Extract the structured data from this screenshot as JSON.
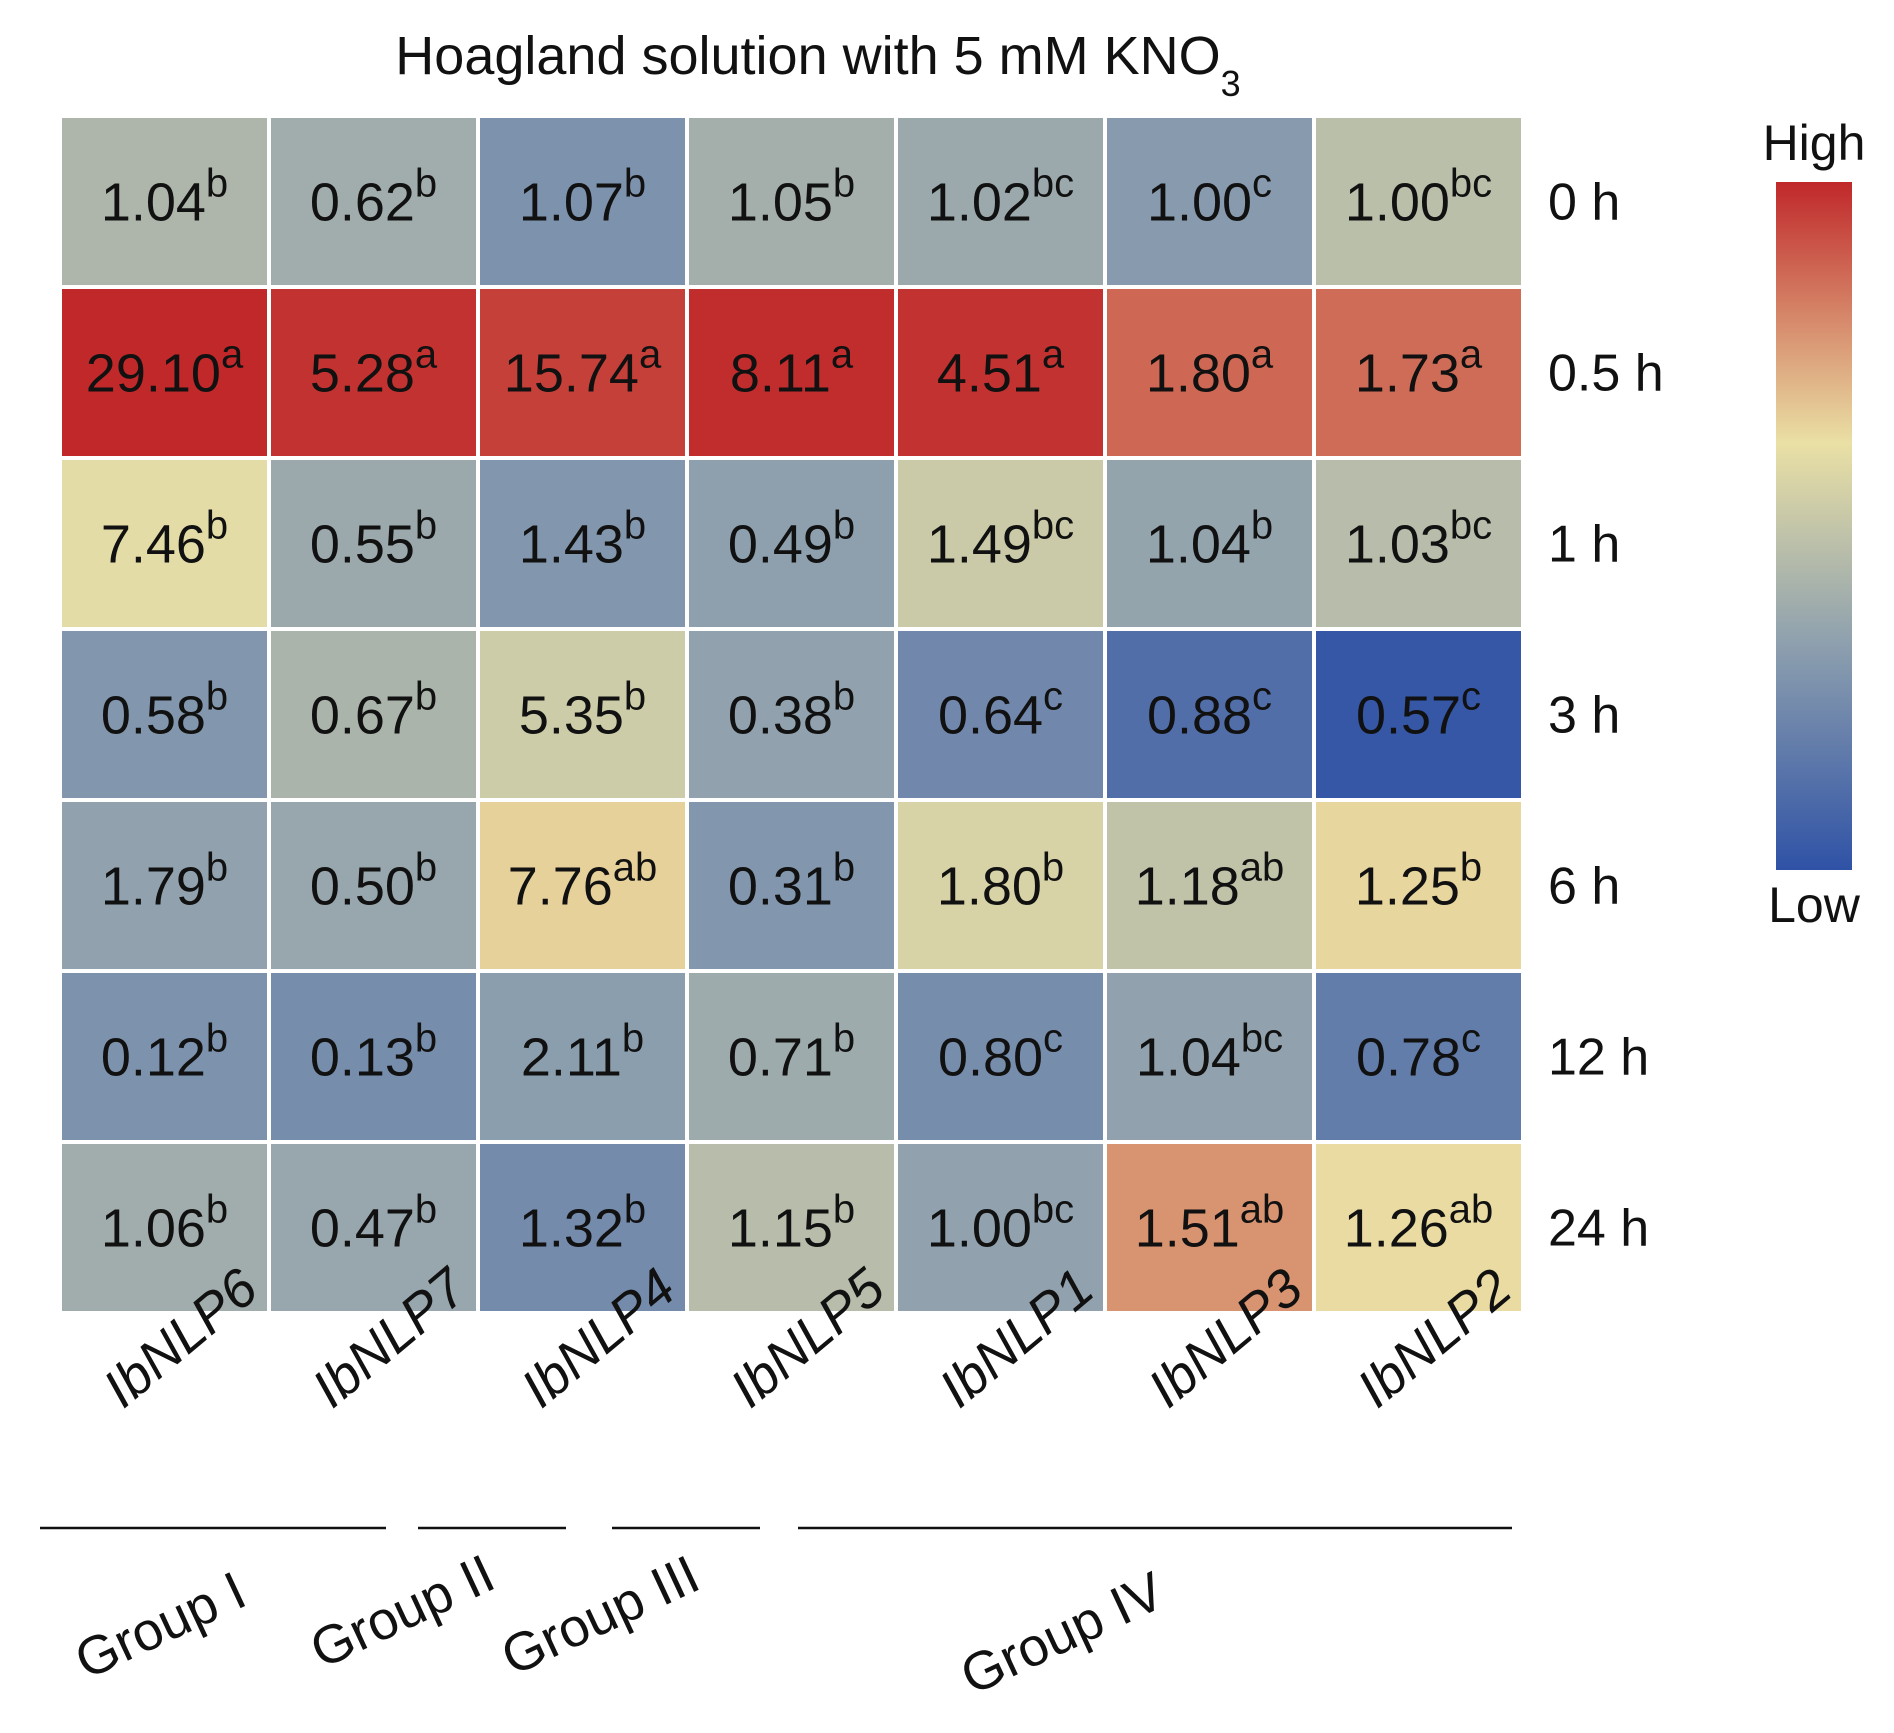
{
  "chart_data": {
    "type": "heatmap",
    "title": "Hoagland solution with 5 mM KNO",
    "title_subscript": "3",
    "columns": [
      "IbNLP6",
      "IbNLP7",
      "IbNLP4",
      "IbNLP5",
      "IbNLP1",
      "IbNLP3",
      "IbNLP2"
    ],
    "rows": [
      "0 h",
      "0.5 h",
      "1 h",
      "3 h",
      "6 h",
      "12 h",
      "24 h"
    ],
    "values": [
      [
        "1.04",
        "0.62",
        "1.07",
        "1.05",
        "1.02",
        "1.00",
        "1.00"
      ],
      [
        "29.10",
        "5.28",
        "15.74",
        "8.11",
        "4.51",
        "1.80",
        "1.73"
      ],
      [
        "7.46",
        "0.55",
        "1.43",
        "0.49",
        "1.49",
        "1.04",
        "1.03"
      ],
      [
        "0.58",
        "0.67",
        "5.35",
        "0.38",
        "0.64",
        "0.88",
        "0.57"
      ],
      [
        "1.79",
        "0.50",
        "7.76",
        "0.31",
        "1.80",
        "1.18",
        "1.25"
      ],
      [
        "0.12",
        "0.13",
        "2.11",
        "0.71",
        "0.80",
        "1.04",
        "0.78"
      ],
      [
        "1.06",
        "0.47",
        "1.32",
        "1.15",
        "1.00",
        "1.51",
        "1.26"
      ]
    ],
    "letters": [
      [
        "b",
        "b",
        "b",
        "b",
        "bc",
        "c",
        "bc"
      ],
      [
        "a",
        "a",
        "a",
        "a",
        "a",
        "a",
        "a"
      ],
      [
        "b",
        "b",
        "b",
        "b",
        "bc",
        "b",
        "bc"
      ],
      [
        "b",
        "b",
        "b",
        "b",
        "c",
        "c",
        "c"
      ],
      [
        "b",
        "b",
        "ab",
        "b",
        "b",
        "ab",
        "b"
      ],
      [
        "b",
        "b",
        "b",
        "b",
        "c",
        "bc",
        "c"
      ],
      [
        "b",
        "b",
        "b",
        "b",
        "bc",
        "ab",
        "ab"
      ]
    ],
    "color_scale": [
      [
        0.43,
        0.39,
        0.27,
        0.4,
        0.37,
        0.31,
        0.47
      ],
      [
        1.0,
        0.98,
        0.95,
        0.99,
        0.98,
        0.87,
        0.86
      ],
      [
        0.6,
        0.37,
        0.29,
        0.33,
        0.52,
        0.35,
        0.46
      ],
      [
        0.29,
        0.42,
        0.53,
        0.34,
        0.23,
        0.12,
        0.02
      ],
      [
        0.34,
        0.36,
        0.65,
        0.29,
        0.56,
        0.49,
        0.64
      ],
      [
        0.27,
        0.25,
        0.32,
        0.38,
        0.25,
        0.34,
        0.18
      ],
      [
        0.39,
        0.36,
        0.24,
        0.46,
        0.34,
        0.78,
        0.63
      ]
    ],
    "colormap": [
      "#2f52a6",
      "#8ea0ae",
      "#eae0a5",
      "#c0282a"
    ],
    "groups": [
      {
        "label": "Group I",
        "columns": [
          "IbNLP6",
          "IbNLP7"
        ]
      },
      {
        "label": "Group II",
        "columns": [
          "IbNLP4"
        ]
      },
      {
        "label": "Group III",
        "columns": [
          "IbNLP5"
        ]
      },
      {
        "label": "Group IV",
        "columns": [
          "IbNLP1",
          "IbNLP3",
          "IbNLP2"
        ]
      }
    ],
    "legend": {
      "high_label": "High",
      "low_label": "Low",
      "placement": "right"
    }
  }
}
